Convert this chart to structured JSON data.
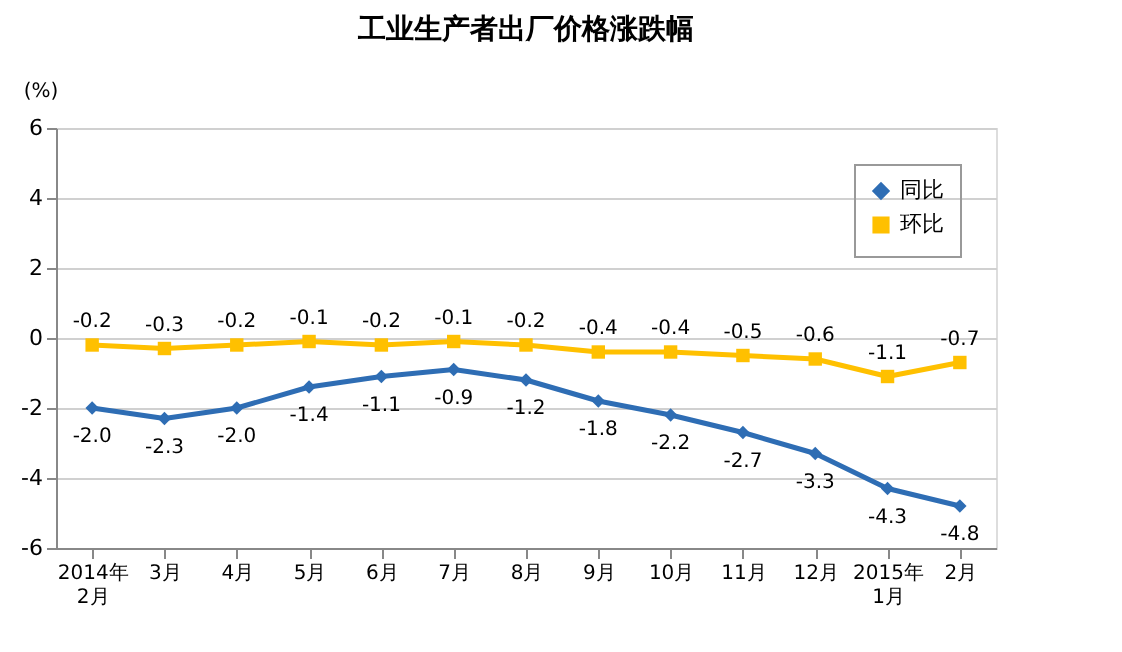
{
  "chart_data": {
    "type": "line",
    "title": "工业生产者出厂价格涨跌幅",
    "ylabel": "(%)",
    "categories": [
      "2014年\n2月",
      "3月",
      "4月",
      "5月",
      "6月",
      "7月",
      "8月",
      "9月",
      "10月",
      "11月",
      "12月",
      "2015年\n1月",
      "2月"
    ],
    "series": [
      {
        "name": "同比",
        "color": "#2e6db4",
        "marker": "diamond",
        "values": [
          -2.0,
          -2.3,
          -2.0,
          -1.4,
          -1.1,
          -0.9,
          -1.2,
          -1.8,
          -2.2,
          -2.7,
          -3.3,
          -4.3,
          -4.8
        ],
        "value_labels": [
          "-2.0",
          "-2.3",
          "-2.0",
          "-1.4",
          "-1.1",
          "-0.9",
          "-1.2",
          "-1.8",
          "-2.2",
          "-2.7",
          "-3.3",
          "-4.3",
          "-4.8"
        ]
      },
      {
        "name": "环比",
        "color": "#ffc000",
        "marker": "square",
        "values": [
          -0.2,
          -0.3,
          -0.2,
          -0.1,
          -0.2,
          -0.1,
          -0.2,
          -0.4,
          -0.4,
          -0.5,
          -0.6,
          -1.1,
          -0.7
        ],
        "value_labels": [
          "-0.2",
          "-0.3",
          "-0.2",
          "-0.1",
          "-0.2",
          "-0.1",
          "-0.2",
          "-0.4",
          "-0.4",
          "-0.5",
          "-0.6",
          "-1.1",
          "-0.7"
        ]
      }
    ],
    "ylim": [
      -6,
      6
    ],
    "yticks": [
      -6,
      -4,
      -2,
      0,
      2,
      4,
      6
    ],
    "grid": "y",
    "legend": "top right",
    "data_labels": true,
    "line_style": "solid"
  }
}
